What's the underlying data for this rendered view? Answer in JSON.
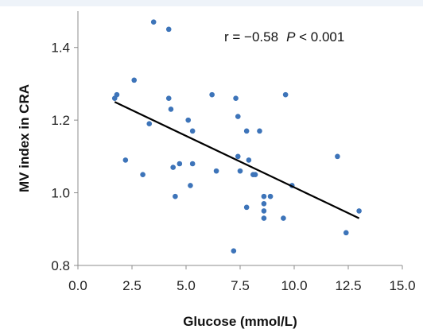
{
  "chart_data": {
    "type": "scatter",
    "title": "",
    "xlabel": "Glucose (mmol/L)",
    "ylabel": "MV index in CRA",
    "xlim": [
      0,
      15
    ],
    "ylim": [
      0.8,
      1.5
    ],
    "x_ticks": [
      0,
      2.5,
      5,
      7.5,
      10,
      12.5,
      15
    ],
    "x_tick_labels": [
      "0.0",
      "2.5",
      "5.0",
      "7.5",
      "10.0",
      "12.5",
      "15.0"
    ],
    "y_ticks": [
      0.8,
      1.0,
      1.2,
      1.4
    ],
    "y_tick_labels": [
      "0.8",
      "1.0",
      "1.2",
      "1.4"
    ],
    "grid": false,
    "legend": "none",
    "annotation": {
      "prefix": "r = −0.58",
      "p_symbol": "P",
      "suffix": " < 0.001"
    },
    "series": [
      {
        "marker_color": "#3d74b9",
        "points": [
          [
            1.7,
            1.26
          ],
          [
            1.8,
            1.27
          ],
          [
            2.2,
            1.09
          ],
          [
            2.6,
            1.31
          ],
          [
            3.0,
            1.05
          ],
          [
            3.3,
            1.19
          ],
          [
            3.5,
            1.47
          ],
          [
            4.2,
            1.45
          ],
          [
            4.2,
            1.26
          ],
          [
            4.3,
            1.23
          ],
          [
            4.4,
            1.07
          ],
          [
            4.5,
            0.99
          ],
          [
            4.7,
            1.08
          ],
          [
            5.1,
            1.2
          ],
          [
            5.2,
            1.02
          ],
          [
            5.3,
            1.17
          ],
          [
            5.3,
            1.08
          ],
          [
            6.2,
            1.27
          ],
          [
            6.4,
            1.06
          ],
          [
            7.2,
            0.84
          ],
          [
            7.3,
            1.26
          ],
          [
            7.4,
            1.21
          ],
          [
            7.4,
            1.1
          ],
          [
            7.5,
            1.06
          ],
          [
            7.8,
            1.17
          ],
          [
            7.8,
            0.96
          ],
          [
            7.9,
            1.09
          ],
          [
            8.1,
            1.05
          ],
          [
            8.2,
            1.05
          ],
          [
            8.4,
            1.17
          ],
          [
            8.6,
            0.99
          ],
          [
            8.6,
            0.97
          ],
          [
            8.6,
            0.95
          ],
          [
            8.6,
            0.93
          ],
          [
            8.9,
            0.99
          ],
          [
            9.5,
            0.93
          ],
          [
            9.6,
            1.27
          ],
          [
            9.9,
            1.02
          ],
          [
            12.0,
            1.1
          ],
          [
            12.4,
            0.89
          ],
          [
            13.0,
            0.95
          ]
        ]
      }
    ],
    "trendline": {
      "color": "#000000",
      "from": [
        1.7,
        1.25
      ],
      "to": [
        13.0,
        0.93
      ]
    }
  }
}
